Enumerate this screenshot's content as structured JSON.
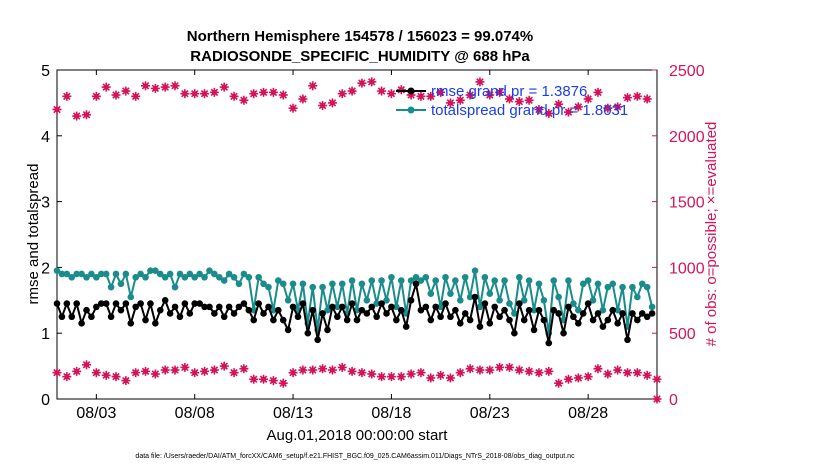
{
  "chart_data": {
    "type": "line",
    "title": [
      "Northern Hemisphere 154578 / 156023 = 99.074%",
      "RADIOSONDE_SPECIFIC_HUMIDITY @ 688 hPa"
    ],
    "xlabel": "Aug.01,2018 00:00:00 start",
    "ylabel_left": "rmse and totalspread",
    "ylabel_right": "# of obs: o=possible; ×=evaluated",
    "footnote": "data file: /Users/raeder/DAI/ATM_forcXX/CAM6_setup/f.e21.FHIST_BGC.f09_025.CAM6assim.011/Diags_NTrS_2018-08/obs_diag_output.nc",
    "x_ticks": [
      "08/03",
      "08/08",
      "08/13",
      "08/18",
      "08/23",
      "08/28"
    ],
    "y_left_ticks": [
      "0",
      "1",
      "2",
      "3",
      "4",
      "5"
    ],
    "y_right_ticks": [
      "0",
      "500",
      "1000",
      "1500",
      "2000",
      "2500"
    ],
    "xlim": [
      1.0,
      31.5
    ],
    "ylim_left": [
      0,
      5
    ],
    "ylim_right": [
      0,
      2500
    ],
    "legend": [
      {
        "label": "rmse grand pr = 1.3876",
        "color": "#000000"
      },
      {
        "label": "totalspread grand pr = 1.8031",
        "color": "#1a8c8c"
      }
    ],
    "colors": {
      "rmse": "#000000",
      "spread": "#1a8c8c",
      "obs": "#d4145a",
      "legend_text": "#1a3ee8",
      "right_axis": "#d4145a"
    },
    "x": [
      1.0,
      1.25,
      1.5,
      1.75,
      2.0,
      2.25,
      2.5,
      2.75,
      3.0,
      3.25,
      3.5,
      3.75,
      4.0,
      4.25,
      4.5,
      4.75,
      5.0,
      5.25,
      5.5,
      5.75,
      6.0,
      6.25,
      6.5,
      6.75,
      7.0,
      7.25,
      7.5,
      7.75,
      8.0,
      8.25,
      8.5,
      8.75,
      9.0,
      9.25,
      9.5,
      9.75,
      10.0,
      10.25,
      10.5,
      10.75,
      11.0,
      11.25,
      11.5,
      11.75,
      12.0,
      12.25,
      12.5,
      12.75,
      13.0,
      13.25,
      13.5,
      13.75,
      14.0,
      14.25,
      14.5,
      14.75,
      15.0,
      15.25,
      15.5,
      15.75,
      16.0,
      16.25,
      16.5,
      16.75,
      17.0,
      17.25,
      17.5,
      17.75,
      18.0,
      18.25,
      18.5,
      18.75,
      19.0,
      19.25,
      19.5,
      19.75,
      20.0,
      20.25,
      20.5,
      20.75,
      21.0,
      21.25,
      21.5,
      21.75,
      22.0,
      22.25,
      22.5,
      22.75,
      23.0,
      23.25,
      23.5,
      23.75,
      24.0,
      24.25,
      24.5,
      24.75,
      25.0,
      25.25,
      25.5,
      25.75,
      26.0,
      26.25,
      26.5,
      26.75,
      27.0,
      27.25,
      27.5,
      27.75,
      28.0,
      28.25,
      28.5,
      28.75,
      29.0,
      29.25,
      29.5,
      29.75,
      30.0,
      30.25,
      30.5,
      30.75,
      31.0,
      31.25
    ],
    "rmse": [
      1.45,
      1.25,
      1.45,
      1.25,
      1.45,
      1.15,
      1.35,
      1.25,
      1.4,
      1.45,
      1.45,
      1.25,
      1.45,
      1.35,
      1.45,
      1.15,
      1.4,
      1.45,
      1.2,
      1.45,
      1.15,
      1.35,
      1.5,
      1.3,
      1.4,
      1.25,
      1.45,
      1.3,
      1.45,
      1.45,
      1.4,
      1.4,
      1.3,
      1.4,
      1.25,
      1.4,
      1.3,
      1.4,
      1.45,
      1.35,
      1.2,
      1.45,
      1.3,
      1.4,
      1.2,
      1.35,
      1.2,
      1.05,
      1.4,
      1.25,
      1.45,
      1.0,
      1.35,
      0.9,
      1.3,
      1.05,
      1.4,
      1.25,
      1.4,
      1.2,
      1.45,
      1.2,
      1.35,
      1.3,
      1.4,
      1.25,
      1.45,
      1.3,
      1.4,
      1.2,
      1.35,
      1.1,
      1.5,
      1.75,
      1.35,
      1.4,
      1.2,
      1.4,
      1.25,
      1.45,
      1.25,
      1.35,
      1.15,
      1.3,
      1.2,
      1.55,
      1.1,
      1.45,
      1.15,
      1.4,
      1.25,
      1.35,
      1.2,
      1.0,
      1.45,
      1.2,
      1.35,
      1.05,
      1.35,
      1.2,
      0.85,
      1.35,
      1.3,
      1.0,
      1.4,
      1.25,
      1.15,
      1.3,
      1.45,
      1.2,
      1.3,
      1.1,
      1.2,
      1.35,
      1.15,
      1.3,
      0.9,
      1.3,
      1.2,
      1.3,
      1.25,
      1.3
    ],
    "totalspread": [
      1.95,
      1.9,
      1.9,
      1.85,
      1.9,
      1.9,
      1.85,
      1.9,
      1.85,
      1.9,
      1.9,
      1.7,
      1.9,
      1.75,
      1.9,
      1.55,
      1.85,
      1.9,
      1.85,
      1.95,
      1.95,
      1.9,
      1.85,
      1.9,
      1.7,
      1.9,
      1.85,
      1.9,
      1.85,
      1.9,
      1.85,
      1.95,
      1.9,
      1.85,
      1.8,
      1.9,
      1.85,
      1.75,
      1.9,
      1.85,
      1.35,
      1.85,
      1.75,
      1.7,
      1.35,
      1.8,
      1.75,
      1.5,
      1.75,
      1.35,
      1.75,
      1.15,
      1.7,
      1.05,
      1.7,
      1.35,
      1.75,
      1.4,
      1.75,
      1.3,
      1.8,
      1.35,
      1.75,
      1.5,
      1.8,
      1.45,
      1.8,
      1.5,
      1.85,
      1.4,
      1.8,
      1.3,
      1.8,
      1.85,
      1.8,
      1.85,
      1.6,
      1.8,
      1.4,
      1.85,
      1.6,
      1.8,
      1.5,
      1.85,
      1.55,
      1.95,
      1.4,
      1.85,
      1.6,
      1.8,
      1.5,
      1.8,
      1.45,
      1.3,
      1.85,
      1.5,
      1.8,
      1.35,
      1.75,
      1.5,
      1.0,
      1.8,
      1.55,
      1.2,
      1.8,
      1.45,
      1.35,
      1.75,
      1.8,
      1.5,
      1.75,
      1.35,
      1.7,
      1.75,
      1.35,
      1.7,
      1.1,
      1.7,
      1.55,
      1.75,
      1.7,
      1.4
    ],
    "obs_x": [
      1.0,
      1.5,
      2.0,
      2.5,
      3.0,
      3.5,
      4.0,
      4.5,
      5.0,
      5.5,
      6.0,
      6.5,
      7.0,
      7.5,
      8.0,
      8.5,
      9.0,
      9.5,
      10.0,
      10.5,
      11.0,
      11.5,
      12.0,
      12.5,
      13.0,
      13.5,
      14.0,
      14.5,
      15.0,
      15.5,
      16.0,
      16.5,
      17.0,
      17.5,
      18.0,
      18.5,
      19.0,
      19.5,
      20.0,
      20.5,
      21.0,
      21.5,
      22.0,
      22.5,
      23.0,
      23.5,
      24.0,
      24.5,
      25.0,
      25.5,
      26.0,
      26.5,
      27.0,
      27.5,
      28.0,
      28.5,
      29.0,
      29.5,
      30.0,
      30.5,
      31.0,
      31.5
    ],
    "obs_possible": [
      2200,
      2300,
      2150,
      2160,
      2300,
      2370,
      2310,
      2340,
      2300,
      2380,
      2360,
      2370,
      2380,
      2320,
      2320,
      2320,
      2330,
      2370,
      2300,
      2270,
      2320,
      2330,
      2330,
      2310,
      2210,
      2280,
      2380,
      2230,
      2250,
      2320,
      2340,
      2400,
      2410,
      2340,
      2320,
      2350,
      2310,
      2300,
      2300,
      2330,
      2250,
      2270,
      2310,
      2410,
      2310,
      2330,
      2280,
      2260,
      2270,
      2200,
      2170,
      2240,
      2180,
      2220,
      2280,
      2330,
      2210,
      2220,
      2290,
      2300,
      2280,
      0
    ],
    "obs_evaluated": [
      200,
      170,
      210,
      260,
      200,
      180,
      170,
      140,
      200,
      210,
      190,
      220,
      220,
      240,
      200,
      210,
      220,
      250,
      200,
      230,
      150,
      150,
      140,
      120,
      200,
      220,
      220,
      230,
      220,
      240,
      210,
      200,
      190,
      170,
      170,
      170,
      190,
      200,
      160,
      180,
      160,
      200,
      230,
      220,
      220,
      240,
      240,
      220,
      210,
      200,
      210,
      120,
      150,
      160,
      170,
      230,
      190,
      220,
      200,
      200,
      180,
      150
    ]
  }
}
